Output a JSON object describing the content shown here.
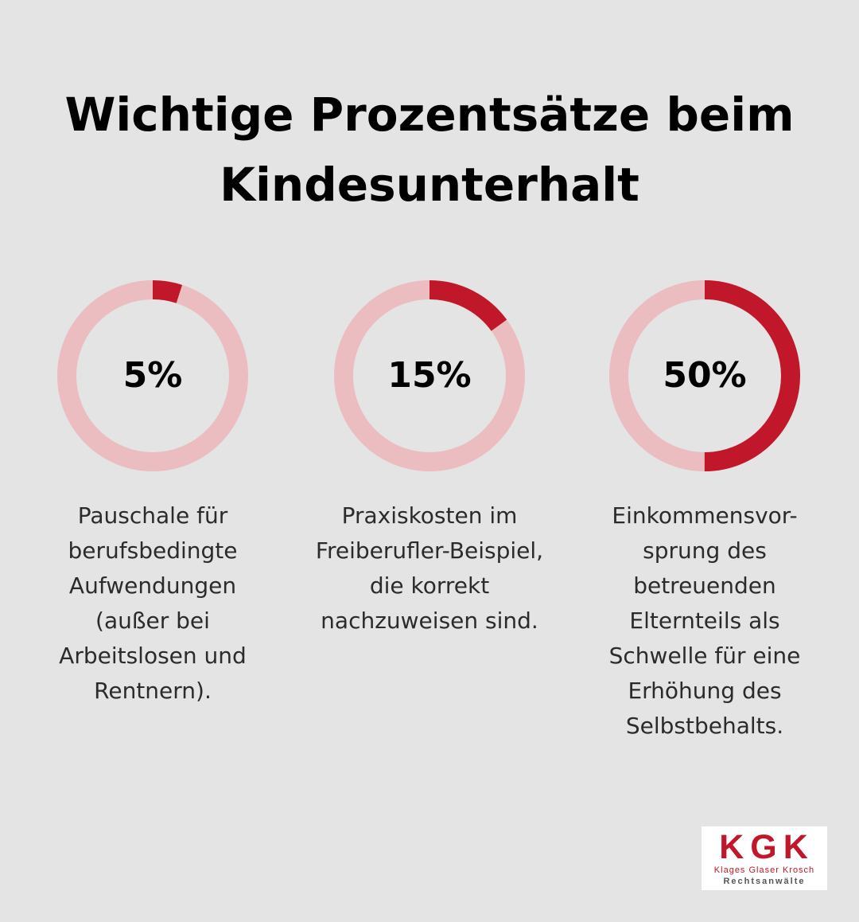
{
  "title": "Wichtige Prozentsätze beim Kindesunterhalt",
  "colors": {
    "background": "#e4e4e4",
    "ring_track": "#ebbcc0",
    "ring_fill": "#c0182a"
  },
  "chart_data": {
    "type": "pie",
    "title": "Wichtige Prozentsätze beim Kindesunterhalt",
    "series": [
      {
        "value": 5,
        "label": "5%",
        "description": "Pauschale für berufsbedingte Aufwendungen (außer bei Arbeitslosen und Rentnern)."
      },
      {
        "value": 15,
        "label": "15%",
        "description": "Praxiskosten im Freiberufler-Beispiel, die korrekt nachzuweisen sind."
      },
      {
        "value": 50,
        "label": "50%",
        "description": "Einkommensvor-sprung des betreuenden Elternteils als Schwelle für eine Erhöhung des Selbstbehalts."
      }
    ]
  },
  "logo": {
    "letters": "KGK",
    "names": "Klages Glaser Krosch",
    "subtitle": "Rechtsanwälte"
  }
}
